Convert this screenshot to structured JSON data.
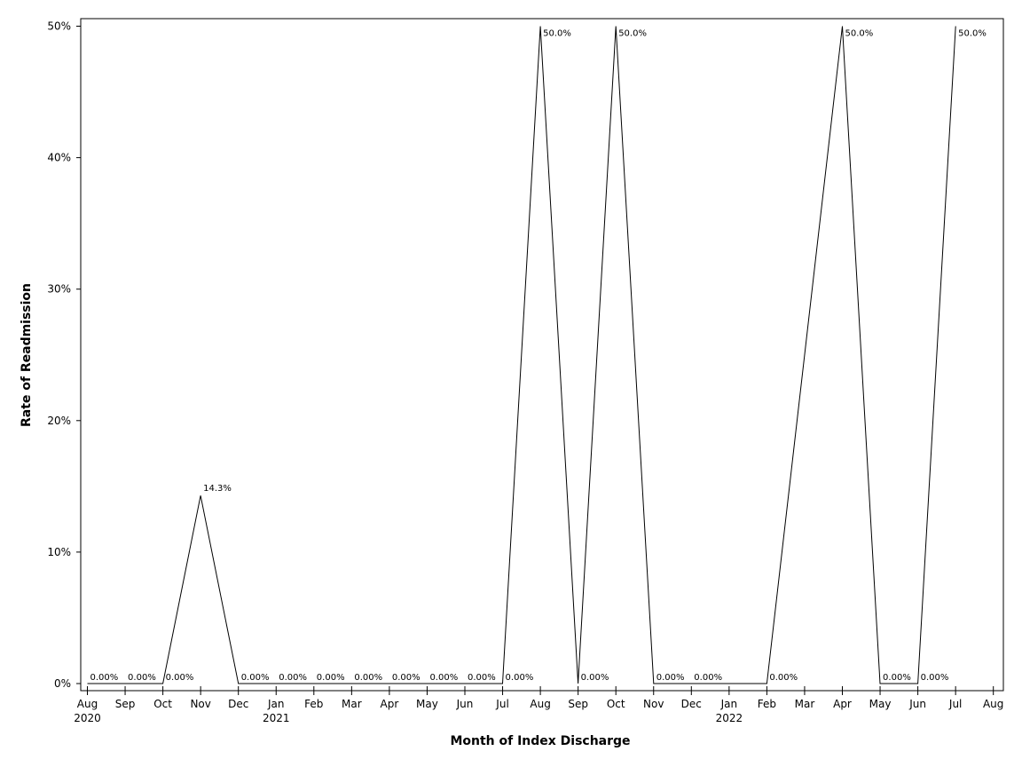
{
  "chart_data": {
    "type": "line",
    "title": "",
    "xlabel": "Month of Index Discharge",
    "ylabel": "Rate of Readmission",
    "ylim": [
      0,
      50
    ],
    "grid": false,
    "line_color": "#000000",
    "x_ticks": [
      {
        "label": "Aug",
        "year": "2020"
      },
      {
        "label": "Sep",
        "year": ""
      },
      {
        "label": "Oct",
        "year": ""
      },
      {
        "label": "Nov",
        "year": ""
      },
      {
        "label": "Dec",
        "year": ""
      },
      {
        "label": "Jan",
        "year": "2021"
      },
      {
        "label": "Feb",
        "year": ""
      },
      {
        "label": "Mar",
        "year": ""
      },
      {
        "label": "Apr",
        "year": ""
      },
      {
        "label": "May",
        "year": ""
      },
      {
        "label": "Jun",
        "year": ""
      },
      {
        "label": "Jul",
        "year": ""
      },
      {
        "label": "Aug",
        "year": ""
      },
      {
        "label": "Sep",
        "year": ""
      },
      {
        "label": "Oct",
        "year": ""
      },
      {
        "label": "Nov",
        "year": ""
      },
      {
        "label": "Dec",
        "year": ""
      },
      {
        "label": "Jan",
        "year": "2022"
      },
      {
        "label": "Feb",
        "year": ""
      },
      {
        "label": "Mar",
        "year": ""
      },
      {
        "label": "Apr",
        "year": ""
      },
      {
        "label": "May",
        "year": ""
      },
      {
        "label": "Jun",
        "year": ""
      },
      {
        "label": "Jul",
        "year": ""
      },
      {
        "label": "Aug",
        "year": ""
      }
    ],
    "y_ticks": [
      {
        "value": 0,
        "label": "0%"
      },
      {
        "value": 10,
        "label": "10%"
      },
      {
        "value": 20,
        "label": "20%"
      },
      {
        "value": 30,
        "label": "30%"
      },
      {
        "value": 40,
        "label": "40%"
      },
      {
        "value": 50,
        "label": "50%"
      }
    ],
    "points": [
      {
        "x": "2020-08",
        "y": 0,
        "label": "0.00%"
      },
      {
        "x": "2020-09",
        "y": 0,
        "label": "0.00%"
      },
      {
        "x": "2020-10",
        "y": 0,
        "label": "0.00%"
      },
      {
        "x": "2020-11",
        "y": 14.3,
        "label": "14.3%"
      },
      {
        "x": "2020-12",
        "y": 0,
        "label": "0.00%"
      },
      {
        "x": "2021-01",
        "y": 0,
        "label": "0.00%"
      },
      {
        "x": "2021-02",
        "y": 0,
        "label": "0.00%"
      },
      {
        "x": "2021-03",
        "y": 0,
        "label": "0.00%"
      },
      {
        "x": "2021-04",
        "y": 0,
        "label": "0.00%"
      },
      {
        "x": "2021-05",
        "y": 0,
        "label": "0.00%"
      },
      {
        "x": "2021-06",
        "y": 0,
        "label": "0.00%"
      },
      {
        "x": "2021-07",
        "y": 0,
        "label": "0.00%"
      },
      {
        "x": "2021-08",
        "y": 50,
        "label": "50.0%"
      },
      {
        "x": "2021-09",
        "y": 0,
        "label": "0.00%"
      },
      {
        "x": "2021-10",
        "y": 50,
        "label": "50.0%"
      },
      {
        "x": "2021-11",
        "y": 0,
        "label": "0.00%"
      },
      {
        "x": "2021-12",
        "y": 0,
        "label": "0.00%"
      },
      {
        "x": "2022-01",
        "y": 0,
        "label": ""
      },
      {
        "x": "2022-02",
        "y": 0,
        "label": "0.00%"
      },
      {
        "x": "2022-04",
        "y": 50,
        "label": "50.0%"
      },
      {
        "x": "2022-05",
        "y": 0,
        "label": "0.00%"
      },
      {
        "x": "2022-06",
        "y": 0,
        "label": "0.00%"
      },
      {
        "x": "2022-07",
        "y": 50,
        "label": "50.0%"
      }
    ]
  }
}
